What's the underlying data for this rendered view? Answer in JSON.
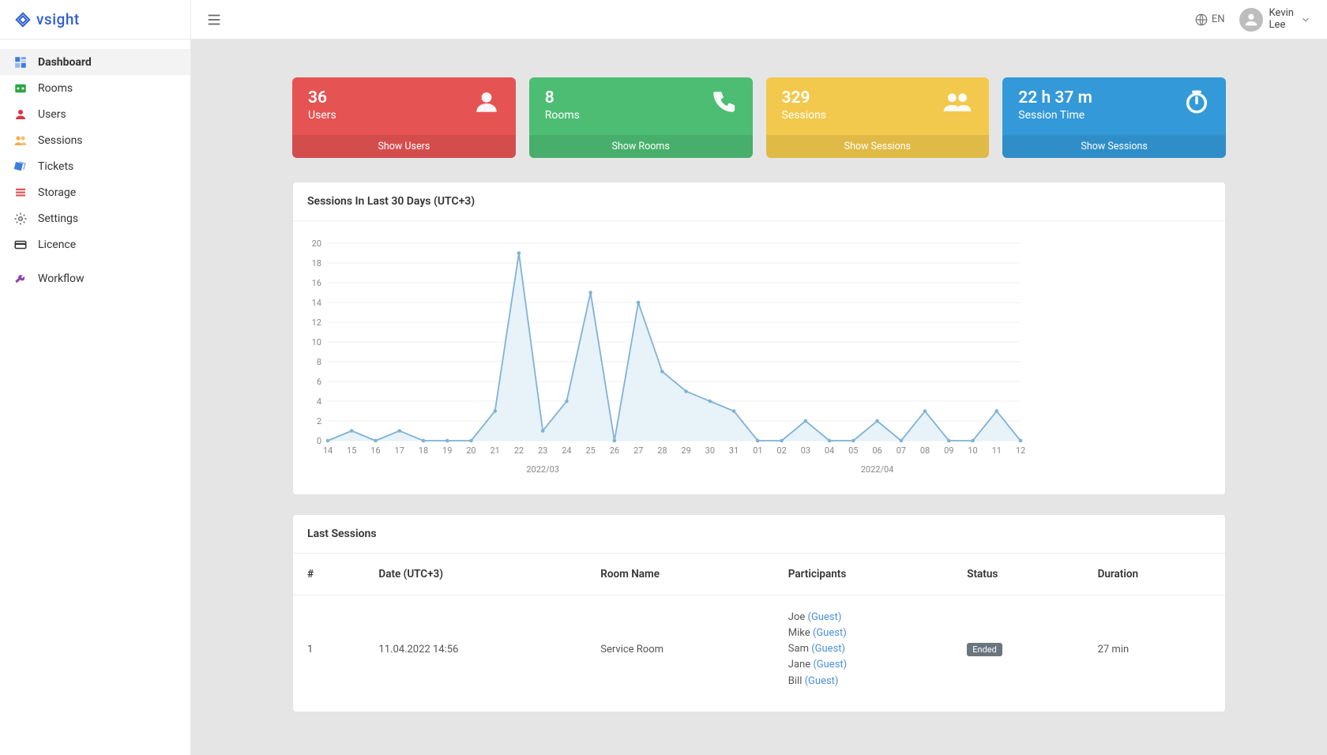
{
  "brand": {
    "name": "vsight",
    "logo_color": "#2f5fd0"
  },
  "topbar": {
    "language": "EN",
    "user_first": "Kevin",
    "user_last": "Lee"
  },
  "sidebar": {
    "items": [
      {
        "label": "Dashboard",
        "icon": "dashboard",
        "color": "#3b7ddd",
        "active": true
      },
      {
        "label": "Rooms",
        "icon": "rooms",
        "color": "#28a745"
      },
      {
        "label": "Users",
        "icon": "user",
        "color": "#dc3545"
      },
      {
        "label": "Sessions",
        "icon": "sessions",
        "color": "#f0ad4e"
      },
      {
        "label": "Tickets",
        "icon": "ticket",
        "color": "#3b7ddd"
      },
      {
        "label": "Storage",
        "icon": "storage",
        "color": "#e55353"
      },
      {
        "label": "Settings",
        "icon": "gear",
        "color": "#666"
      },
      {
        "label": "Licence",
        "icon": "card",
        "color": "#333"
      }
    ],
    "extra": {
      "label": "Workflow",
      "icon": "wrench",
      "color": "#8e44ad"
    }
  },
  "cards": [
    {
      "value": "36",
      "label": "Users",
      "footer": "Show Users",
      "bg": "#e55353",
      "icon": "person"
    },
    {
      "value": "8",
      "label": "Rooms",
      "footer": "Show Rooms",
      "bg": "#4dbd74",
      "icon": "phone"
    },
    {
      "value": "329",
      "label": "Sessions",
      "footer": "Show Sessions",
      "bg": "#f2c94c",
      "icon": "people"
    },
    {
      "value": "22 h 37 m",
      "label": "Session Time",
      "footer": "Show Sessions",
      "bg": "#3399d8",
      "icon": "timer"
    }
  ],
  "chart": {
    "title": "Sessions In Last 30 Days (UTC+3)",
    "type": "area-line",
    "x_labels": [
      "14",
      "15",
      "16",
      "17",
      "18",
      "19",
      "20",
      "21",
      "22",
      "23",
      "24",
      "25",
      "26",
      "27",
      "28",
      "29",
      "30",
      "31",
      "01",
      "02",
      "03",
      "04",
      "05",
      "06",
      "07",
      "08",
      "09",
      "10",
      "11",
      "12"
    ],
    "values": [
      0,
      1,
      0,
      1,
      0,
      0,
      0,
      3,
      19,
      1,
      4,
      15,
      0,
      14,
      7,
      5,
      4,
      3,
      0,
      0,
      2,
      0,
      0,
      2,
      0,
      3,
      0,
      0,
      3,
      0
    ],
    "ylim": [
      0,
      20
    ],
    "ytick_step": 2,
    "line_color": "#7fb3d5",
    "fill_color": "#e8f2f9",
    "marker_color": "#7fb3d5",
    "grid_color": "#eceff1",
    "axis_text_color": "#888",
    "month_labels": [
      {
        "text": "2022/03",
        "at_index": 9
      },
      {
        "text": "2022/04",
        "at_index": 23
      }
    ]
  },
  "last_sessions": {
    "title": "Last Sessions",
    "columns": [
      "#",
      "Date (UTC+3)",
      "Room Name",
      "Participants",
      "Status",
      "Duration"
    ],
    "rows": [
      {
        "n": "1",
        "date": "11.04.2022 14:56",
        "room": "Service Room",
        "participants": [
          {
            "name": "Joe",
            "tag": "(Guest)"
          },
          {
            "name": "Mike",
            "tag": "(Guest)"
          },
          {
            "name": "Sam",
            "tag": "(Guest)"
          },
          {
            "name": "Jane",
            "tag": "(Guest)"
          },
          {
            "name": "Bill",
            "tag": "(Guest)"
          }
        ],
        "status": "Ended",
        "duration": "27 min"
      }
    ]
  }
}
